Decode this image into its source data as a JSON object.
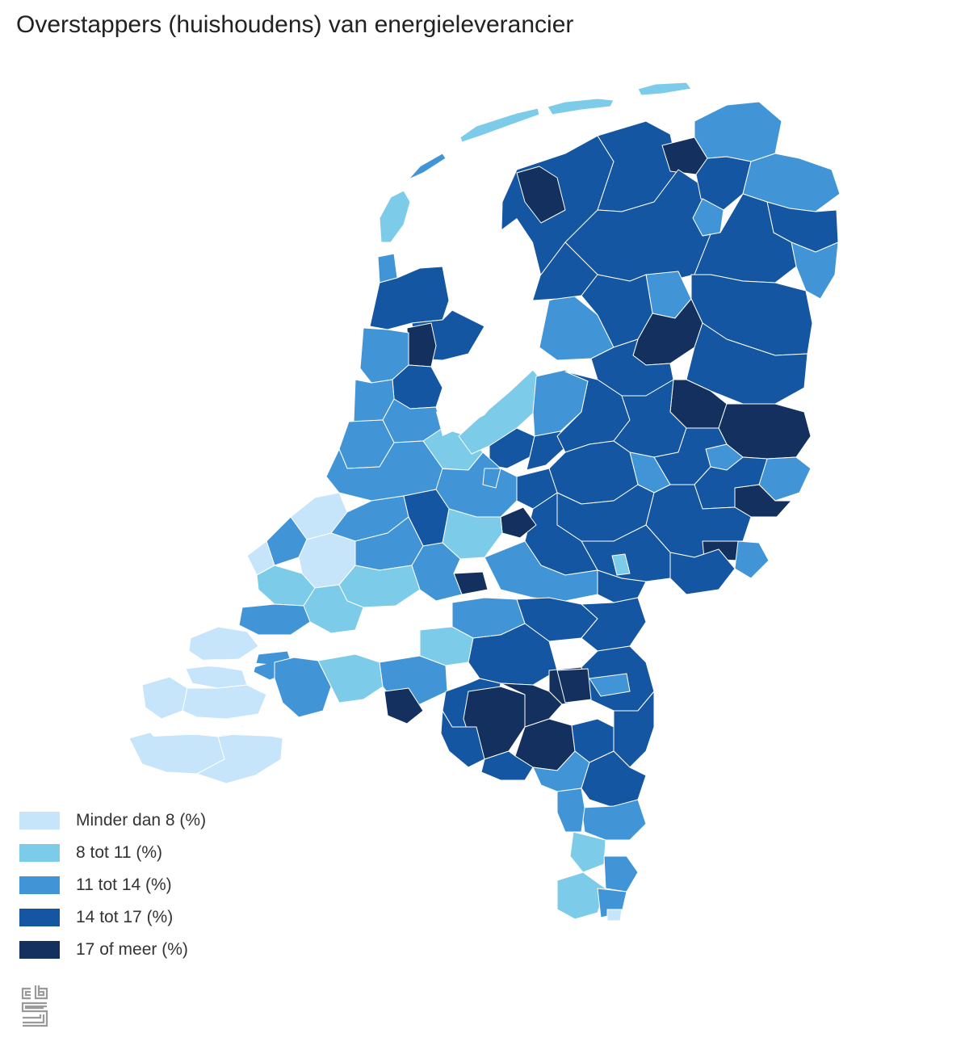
{
  "title": "Overstappers (huishoudens) van energieleverancier",
  "colors": {
    "c1": "#c6e4fa",
    "c2": "#7ccbe9",
    "c3": "#4195d7",
    "c4": "#1456a2",
    "c5": "#13305f",
    "water": "#ffffff",
    "border": "#ffffff"
  },
  "legend": {
    "items": [
      {
        "label": "Minder dan 8 (%)",
        "color": "#c6e4fa"
      },
      {
        "label": "8 tot 11 (%)",
        "color": "#7ccbe9"
      },
      {
        "label": "11 tot 14 (%)",
        "color": "#4195d7"
      },
      {
        "label": "14 tot 17 (%)",
        "color": "#1456a2"
      },
      {
        "label": "17 of meer (%)",
        "color": "#13305f"
      }
    ]
  },
  "logo": {
    "icon": "cbs-logo-icon"
  }
}
